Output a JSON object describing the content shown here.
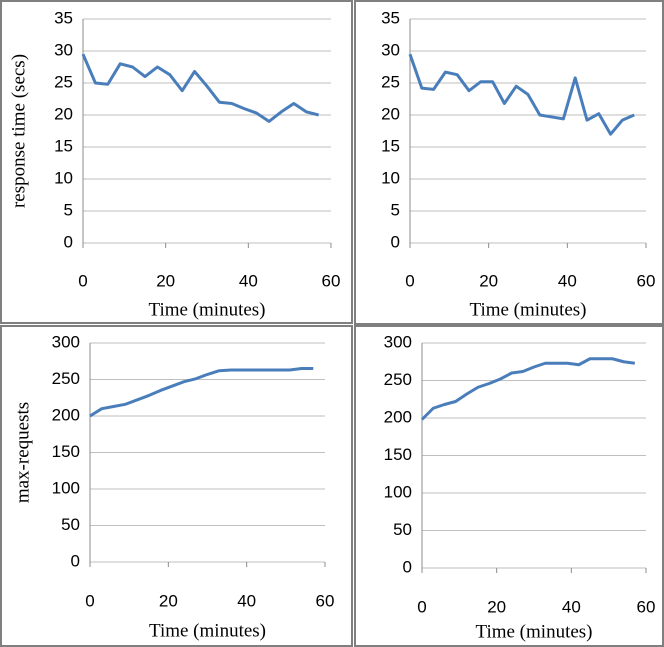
{
  "chart_data": [
    {
      "type": "line",
      "ylabel": "response time (secs)",
      "xlabel": "Time (minutes)",
      "x": [
        0,
        3,
        6,
        9,
        12,
        15,
        18,
        21,
        24,
        27,
        30,
        33,
        36,
        39,
        42,
        45,
        48,
        51,
        54,
        57
      ],
      "series": [
        {
          "color": "#4a7ebb",
          "values": [
            29.5,
            25,
            24.8,
            28,
            27.5,
            26,
            27.5,
            26.3,
            23.8,
            26.8,
            24.5,
            22,
            21.8,
            21,
            20.3,
            19,
            20.5,
            21.8,
            20.5,
            20
          ]
        }
      ],
      "xlim": [
        0,
        60
      ],
      "xticks": [
        0,
        20,
        40,
        60
      ],
      "ylim": [
        0,
        35
      ],
      "yticks": [
        0,
        5,
        10,
        15,
        20,
        25,
        30,
        35
      ],
      "grid": true
    },
    {
      "type": "line",
      "xlabel": "Time (minutes)",
      "x": [
        0,
        3,
        6,
        9,
        12,
        15,
        18,
        21,
        24,
        27,
        30,
        33,
        36,
        39,
        42,
        45,
        48,
        51,
        54,
        57
      ],
      "series": [
        {
          "color": "#4a7ebb",
          "values": [
            29.5,
            24.2,
            24,
            26.7,
            26.3,
            23.8,
            25.2,
            25.2,
            21.8,
            24.5,
            23.2,
            20,
            19.7,
            19.4,
            25.8,
            19.2,
            20.2,
            17,
            19.2,
            20
          ]
        }
      ],
      "xlim": [
        0,
        60
      ],
      "xticks": [
        0,
        20,
        40,
        60
      ],
      "ylim": [
        0,
        35
      ],
      "yticks": [
        0,
        5,
        10,
        15,
        20,
        25,
        30,
        35
      ],
      "grid": true
    },
    {
      "type": "line",
      "ylabel": "max-requests",
      "xlabel": "Time (minutes)",
      "x": [
        0,
        3,
        6,
        9,
        12,
        15,
        18,
        21,
        24,
        27,
        30,
        33,
        36,
        39,
        42,
        45,
        48,
        51,
        54,
        57
      ],
      "series": [
        {
          "color": "#4a7ebb",
          "values": [
            200,
            210,
            213,
            216,
            222,
            228,
            235,
            241,
            247,
            251,
            257,
            262,
            263,
            263,
            263,
            263,
            263,
            263,
            265,
            265
          ]
        }
      ],
      "xlim": [
        0,
        60
      ],
      "xticks": [
        0,
        20,
        40,
        60
      ],
      "ylim": [
        0,
        300
      ],
      "yticks": [
        0,
        50,
        100,
        150,
        200,
        250,
        300
      ],
      "grid": true
    },
    {
      "type": "line",
      "xlabel": "Time (minutes)",
      "x": [
        0,
        3,
        6,
        9,
        12,
        15,
        18,
        21,
        24,
        27,
        30,
        33,
        36,
        39,
        42,
        45,
        48,
        51,
        54,
        57
      ],
      "series": [
        {
          "color": "#4a7ebb",
          "values": [
            198,
            213,
            218,
            222,
            232,
            241,
            246,
            252,
            260,
            262,
            268,
            273,
            273,
            273,
            271,
            279,
            279,
            279,
            275,
            273
          ]
        }
      ],
      "xlim": [
        0,
        60
      ],
      "xticks": [
        0,
        20,
        40,
        60
      ],
      "ylim": [
        0,
        300
      ],
      "yticks": [
        0,
        50,
        100,
        150,
        200,
        250,
        300
      ],
      "grid": true
    }
  ]
}
